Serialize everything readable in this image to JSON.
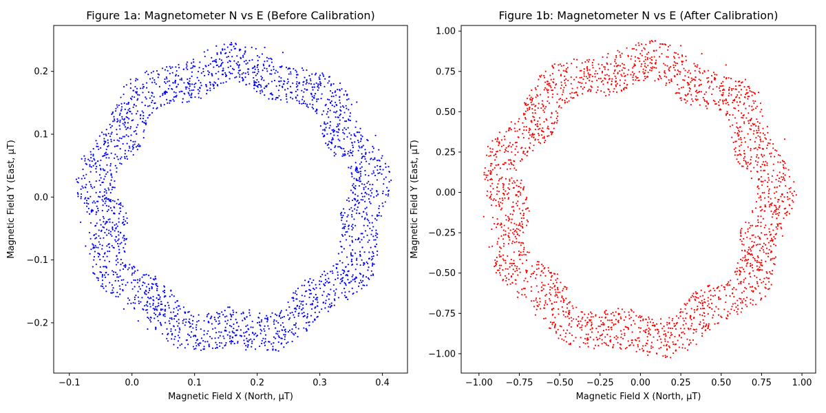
{
  "chart_data": [
    {
      "type": "scatter",
      "title": "Figure 1a: Magnetometer N vs E (Before Calibration)",
      "xlabel": "Magnetic Field X (North, µT)",
      "ylabel": "Magnetic Field Y (East, µT)",
      "xlim": [
        -0.125,
        0.44
      ],
      "ylim": [
        -0.28,
        0.273
      ],
      "xticks": [
        -0.1,
        0.0,
        0.1,
        0.2,
        0.3,
        0.4
      ],
      "xtick_labels": [
        "−0.1",
        "0.0",
        "0.1",
        "0.2",
        "0.3",
        "0.4"
      ],
      "yticks": [
        -0.2,
        -0.1,
        0.0,
        0.1,
        0.2
      ],
      "ytick_labels": [
        "−0.2",
        "−0.1",
        "0.0",
        "0.1",
        "0.2"
      ],
      "grid": false,
      "color": "#0000ff",
      "series": [
        {
          "values": [
            [
              0.409,
              0.002
            ],
            [
              0.389,
              0.098
            ],
            [
              0.359,
              0.151
            ],
            [
              0.304,
              0.197
            ],
            [
              0.241,
              0.23
            ],
            [
              0.164,
              0.236
            ],
            [
              0.098,
              0.219
            ],
            [
              0.029,
              0.188
            ],
            [
              -0.026,
              0.137
            ],
            [
              -0.066,
              0.072
            ],
            [
              -0.086,
              0.001
            ],
            [
              -0.074,
              -0.078
            ],
            [
              -0.041,
              -0.15
            ],
            [
              0.01,
              -0.197
            ],
            [
              0.069,
              -0.222
            ],
            [
              0.145,
              -0.24
            ],
            [
              0.218,
              -0.23
            ],
            [
              0.292,
              -0.196
            ],
            [
              0.348,
              -0.136
            ],
            [
              0.389,
              -0.068
            ],
            [
              0.392,
              0.043
            ],
            [
              0.335,
              0.172
            ],
            [
              0.212,
              0.238
            ],
            [
              0.062,
              0.205
            ],
            [
              -0.048,
              0.103
            ],
            [
              -0.082,
              -0.04
            ],
            [
              -0.013,
              -0.178
            ],
            [
              0.107,
              -0.236
            ],
            [
              0.255,
              -0.215
            ],
            [
              0.371,
              -0.105
            ],
            [
              0.38,
              0.02
            ],
            [
              0.327,
              0.146
            ],
            [
              0.263,
              0.18
            ],
            [
              0.176,
              0.19
            ],
            [
              0.08,
              0.168
            ],
            [
              0.017,
              0.12
            ],
            [
              -0.022,
              0.06
            ],
            [
              -0.043,
              -0.01
            ],
            [
              -0.036,
              -0.08
            ],
            [
              -0.01,
              -0.14
            ],
            [
              0.04,
              -0.18
            ],
            [
              0.11,
              -0.21
            ],
            [
              0.19,
              -0.207
            ],
            [
              0.27,
              -0.17
            ],
            [
              0.33,
              -0.09
            ],
            [
              0.362,
              -0.01
            ],
            [
              0.351,
              0.07
            ],
            [
              0.288,
              0.16
            ],
            [
              0.196,
              0.207
            ],
            [
              0.045,
              0.16
            ],
            [
              -0.057,
              0.04
            ],
            [
              -0.061,
              -0.1
            ],
            [
              0.025,
              -0.21
            ],
            [
              0.182,
              -0.243
            ],
            [
              0.33,
              -0.16
            ],
            [
              0.398,
              -0.03
            ]
          ]
        }
      ]
    },
    {
      "type": "scatter",
      "title": "Figure 1b: Magnetometer N vs E (After Calibration)",
      "xlabel": "Magnetic Field X (North, µT)",
      "ylabel": "Magnetic Field Y (East, µT)",
      "xlim": [
        -1.11,
        1.085
      ],
      "ylim": [
        -1.12,
        1.035
      ],
      "xticks": [
        -1.0,
        -0.75,
        -0.5,
        -0.25,
        0.0,
        0.25,
        0.5,
        0.75,
        1.0
      ],
      "xtick_labels": [
        "−1.00",
        "−0.75",
        "−0.50",
        "−0.25",
        "0.00",
        "0.25",
        "0.50",
        "0.75",
        "1.00"
      ],
      "yticks": [
        -1.0,
        -0.75,
        -0.5,
        -0.25,
        0.0,
        0.25,
        0.5,
        0.75,
        1.0
      ],
      "ytick_labels": [
        "−1.00",
        "−0.75",
        "−0.50",
        "−0.25",
        "0.00",
        "0.25",
        "0.50",
        "0.75",
        "1.00"
      ],
      "grid": false,
      "color": "#ff0000",
      "series": [
        {
          "values": [
            [
              0.945,
              -0.02
            ],
            [
              0.893,
              0.33
            ],
            [
              0.731,
              0.62
            ],
            [
              0.53,
              0.79
            ],
            [
              0.25,
              0.91
            ],
            [
              -0.05,
              0.89
            ],
            [
              -0.33,
              0.82
            ],
            [
              -0.58,
              0.64
            ],
            [
              -0.8,
              0.39
            ],
            [
              -0.93,
              0.12
            ],
            [
              -0.97,
              -0.15
            ],
            [
              -0.9,
              -0.42
            ],
            [
              -0.76,
              -0.65
            ],
            [
              -0.53,
              -0.83
            ],
            [
              -0.26,
              -0.95
            ],
            [
              0.02,
              -0.98
            ],
            [
              0.29,
              -0.91
            ],
            [
              0.54,
              -0.76
            ],
            [
              0.74,
              -0.54
            ],
            [
              0.88,
              -0.27
            ],
            [
              0.9,
              0.15
            ],
            [
              0.65,
              0.7
            ],
            [
              0.38,
              0.86
            ],
            [
              0.12,
              0.9
            ],
            [
              -0.2,
              0.86
            ],
            [
              -0.47,
              0.72
            ],
            [
              -0.7,
              0.52
            ],
            [
              -0.87,
              0.26
            ],
            [
              -0.95,
              -0.02
            ],
            [
              -0.85,
              -0.54
            ],
            [
              -0.65,
              -0.76
            ],
            [
              -0.4,
              -0.9
            ],
            [
              -0.12,
              -0.97
            ],
            [
              0.16,
              -0.95
            ],
            [
              0.42,
              -0.84
            ],
            [
              0.64,
              -0.66
            ],
            [
              0.82,
              -0.41
            ],
            [
              0.91,
              -0.12
            ],
            [
              0.84,
              0.08
            ],
            [
              0.7,
              0.42
            ],
            [
              0.45,
              0.64
            ],
            [
              0.15,
              0.72
            ],
            [
              -0.12,
              0.73
            ],
            [
              -0.4,
              0.62
            ],
            [
              -0.65,
              0.42
            ],
            [
              -0.78,
              0.15
            ],
            [
              -0.82,
              -0.15
            ],
            [
              -0.73,
              -0.44
            ],
            [
              -0.52,
              -0.68
            ],
            [
              -0.25,
              -0.83
            ],
            [
              0.05,
              -0.86
            ],
            [
              0.33,
              -0.78
            ],
            [
              0.57,
              -0.6
            ],
            [
              0.74,
              -0.36
            ],
            [
              0.83,
              -0.08
            ]
          ]
        }
      ]
    }
  ]
}
